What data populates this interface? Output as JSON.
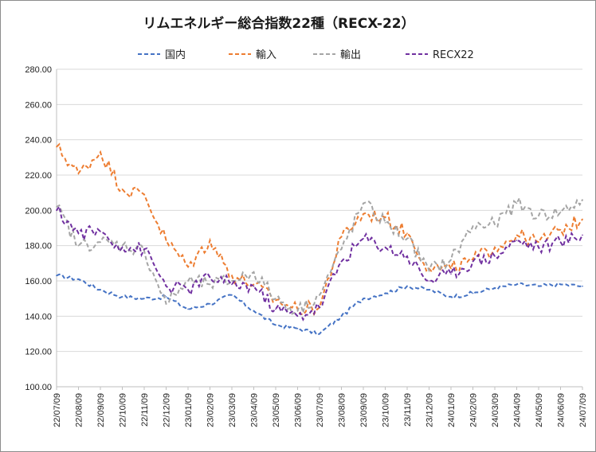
{
  "chart_data": {
    "type": "line",
    "title": "リムエネルギー総合指数22種（RECX-22）",
    "ylim": [
      100,
      280
    ],
    "yticks": [
      "100.00",
      "120.00",
      "140.00",
      "160.00",
      "180.00",
      "200.00",
      "220.00",
      "240.00",
      "260.00",
      "280.00"
    ],
    "categories": [
      "22/07/09",
      "22/08/09",
      "22/09/09",
      "22/10/09",
      "22/11/09",
      "22/12/09",
      "23/01/09",
      "23/02/09",
      "23/03/09",
      "23/04/09",
      "23/05/09",
      "23/06/09",
      "23/07/09",
      "23/08/09",
      "23/09/09",
      "23/10/09",
      "23/11/09",
      "23/12/09",
      "24/01/09",
      "24/02/09",
      "24/03/09",
      "24/04/09",
      "24/05/09",
      "24/06/09",
      "24/07/09"
    ],
    "series": [
      {
        "name": "国内",
        "color": "#4472c4",
        "values": [
          163,
          161,
          155,
          151,
          150,
          151,
          144,
          147,
          152,
          143,
          135,
          133,
          130,
          140,
          150,
          153,
          157,
          155,
          151,
          153,
          156,
          158,
          157,
          158,
          157
        ]
      },
      {
        "name": "輸入",
        "color": "#ed7d31",
        "values": [
          236,
          221,
          233,
          212,
          209,
          183,
          168,
          183,
          163,
          158,
          149,
          144,
          145,
          185,
          198,
          196,
          187,
          167,
          167,
          172,
          179,
          186,
          182,
          189,
          195
        ]
      },
      {
        "name": "輸出",
        "color": "#a5a5a5",
        "values": [
          202,
          180,
          182,
          180,
          177,
          147,
          160,
          158,
          160,
          165,
          150,
          143,
          152,
          178,
          204,
          193,
          184,
          166,
          172,
          191,
          192,
          204,
          197,
          199,
          206
        ]
      },
      {
        "name": "RECX22",
        "color": "#7030a0",
        "values": [
          200,
          187,
          188,
          179,
          178,
          157,
          155,
          162,
          158,
          157,
          144,
          140,
          145,
          171,
          184,
          179,
          174,
          160,
          164,
          171,
          174,
          183,
          179,
          182,
          186
        ]
      }
    ]
  }
}
